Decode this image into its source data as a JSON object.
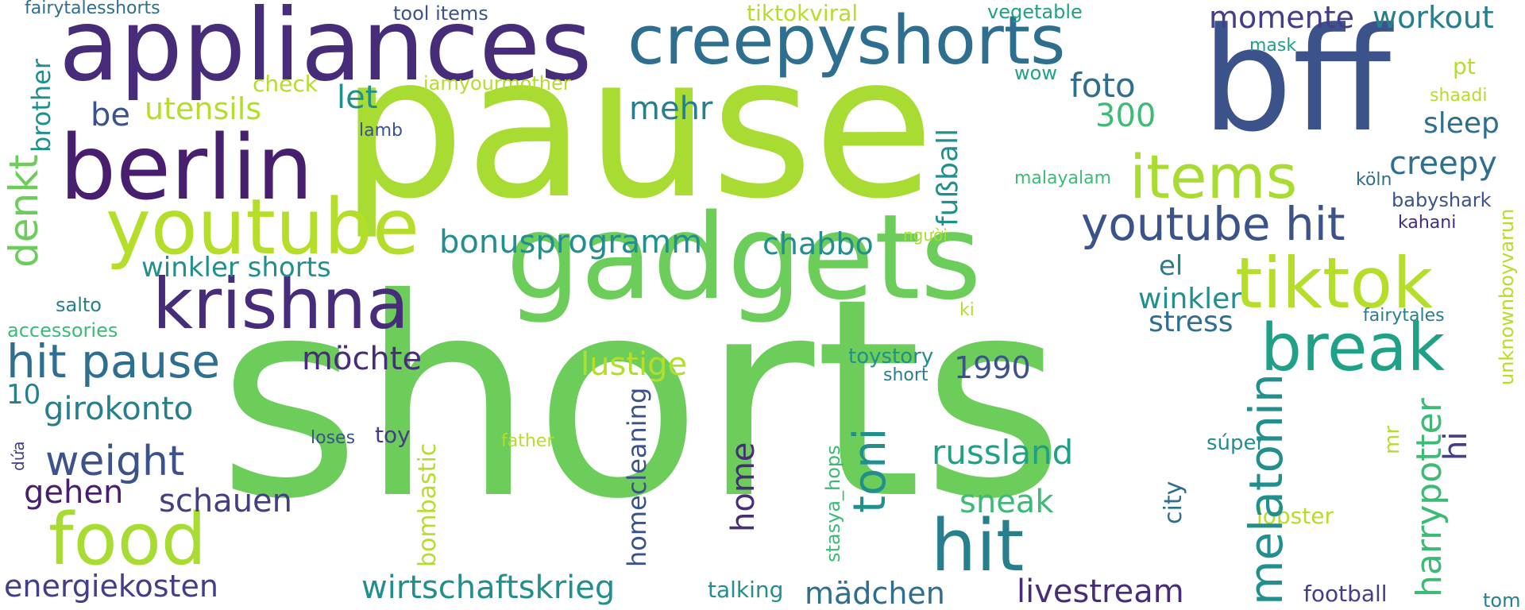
{
  "colors": {
    "lime": "#a8dc32",
    "yellowgreen": "#b5de2b",
    "green": "#6ccd5a",
    "emerald": "#3bbb75",
    "seagreen": "#1fa187",
    "teal": "#218f8d",
    "tealblue": "#277f8e",
    "steel": "#2e6e8e",
    "blue": "#3b528b",
    "indigo": "#433e85",
    "purple": "#472c7a",
    "darkpurple": "#481e6f"
  },
  "words": {
    "shorts": "shorts",
    "pause": "pause",
    "gadgets": "gadgets",
    "bff": "bff",
    "appliances": "appliances",
    "creepyshorts": "creepyshorts",
    "berlin": "berlin",
    "youtube": "youtube",
    "krishna": "krishna",
    "food": "food",
    "hit": "hit",
    "tiktok": "tiktok",
    "break": "break",
    "items": "items",
    "youtube_hit": "youtube hit",
    "hit_pause": "hit pause",
    "weight": "weight",
    "melatonin": "melatonin",
    "toni": "toni",
    "energiekosten": "energiekosten",
    "wirtschaftskrieg": "wirtschaftskrieg",
    "livestream": "livestream",
    "harrypotter": "harrypotter",
    "denkt": "denkt",
    "bonusprogramm": "bonusprogramm",
    "lustige": "lustige",
    "russland": "russland",
    "girokonto": "girokonto",
    "schauen": "schauen",
    "gehen": "gehen",
    "mädchen": "mädchen",
    "sneak": "sneak",
    "chabbo": "chabbo",
    "möchte": "möchte",
    "momente": "momente",
    "workout": "workout",
    "foto": "foto",
    "utensils": "utensils",
    "winkler_shorts": "winkler shorts",
    "mehr": "mehr",
    "let": "let",
    "fußball": "fußball",
    "n300": "300",
    "creepy": "creepy",
    "sleep": "sleep",
    "winkler": "winkler",
    "stress": "stress",
    "n1990": "1990",
    "home": "home",
    "hi": "hi",
    "be": "be",
    "brother": "brother",
    "el": "el",
    "n10": "10",
    "homecleaning": "homecleaning",
    "bombastic": "bombastic",
    "city": "city",
    "check": "check",
    "tiktokviral": "tiktokviral",
    "tool_items": "tool items",
    "vegetable": "vegetable",
    "mask": "mask",
    "fairytalesshorts": "fairytalesshorts",
    "iamyourmother": "iamyourmother",
    "wow": "wow",
    "pt": "pt",
    "shaadi": "shaadi",
    "lamb": "lamb",
    "malayalam": "malayalam",
    "köln": "köln",
    "babyshark": "babyshark",
    "kahani": "kahani",
    "người": "người",
    "unknownboyvarun": "unknownboyvarun",
    "salto": "salto",
    "accessories": "accessories",
    "ki": "ki",
    "fairytales": "fairytales",
    "toystory": "toystory",
    "short": "short",
    "loses": "loses",
    "toy": "toy",
    "father": "father",
    "súper": "súper",
    "mr": "mr",
    "dứa": "dứa",
    "stasya_hops": "stasya_hops",
    "lobster": "lobster",
    "talking": "talking",
    "football": "football",
    "tom": "tom"
  }
}
